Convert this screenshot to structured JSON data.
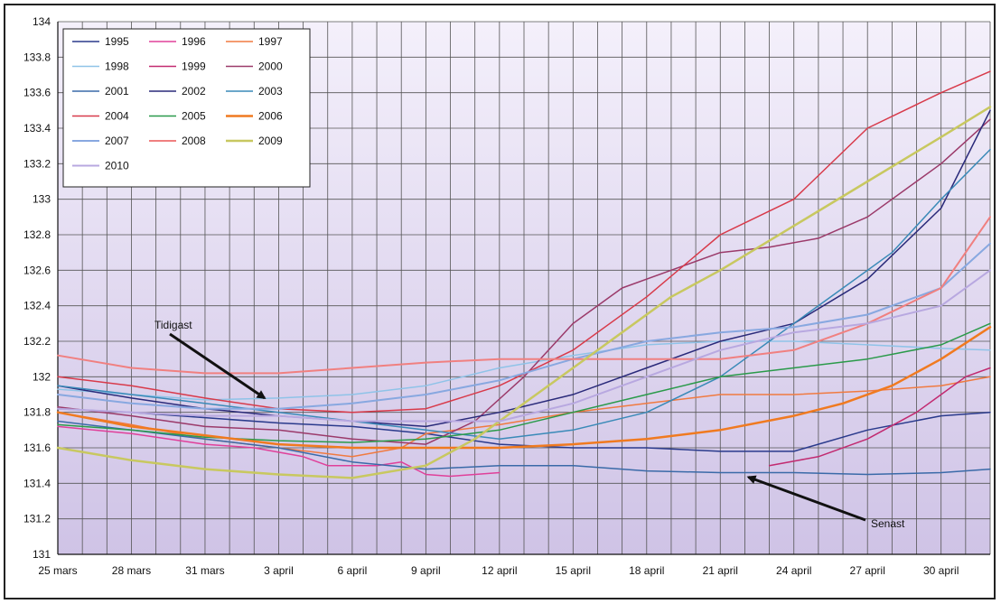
{
  "chart_data": {
    "type": "line",
    "title": "",
    "xlabel": "",
    "ylabel": "",
    "x_tick_labels": [
      "25 mars",
      "28 mars",
      "31 mars",
      "3 april",
      "6 april",
      "9 april",
      "12 april",
      "15 april",
      "18 april",
      "21 april",
      "24 april",
      "27 april",
      "30 april"
    ],
    "x_range": [
      0,
      38
    ],
    "ylim": [
      131,
      134
    ],
    "y_ticks": [
      131,
      131.2,
      131.4,
      131.6,
      131.8,
      132,
      132.2,
      132.4,
      132.6,
      132.8,
      133,
      133.2,
      133.4,
      133.6,
      133.8,
      134
    ],
    "y_tick_labels": [
      "131",
      "131.2",
      "131.4",
      "131.6",
      "131.8",
      "132",
      "132.2",
      "132.4",
      "132.6",
      "132.8",
      "133",
      "133.2",
      "133.4",
      "133.6",
      "133.8",
      "134"
    ],
    "grid": true,
    "legend_position": "top-left",
    "background_gradient": [
      "#f4f0fb",
      "#cfc3e6"
    ],
    "series": [
      {
        "name": "1995",
        "color": "#2a3a8c",
        "width": 1.5,
        "x": [
          0,
          3,
          6,
          9,
          12,
          15,
          18,
          21,
          24,
          27,
          30,
          33,
          36,
          38
        ],
        "values": [
          131.82,
          131.8,
          131.77,
          131.74,
          131.72,
          131.68,
          131.62,
          131.6,
          131.6,
          131.58,
          131.58,
          131.7,
          131.78,
          131.8
        ]
      },
      {
        "name": "1996",
        "color": "#e0409a",
        "width": 1.5,
        "x": [
          0,
          3,
          6,
          8,
          10,
          11,
          13,
          14,
          15,
          16,
          17,
          18
        ],
        "values": [
          131.72,
          131.68,
          131.62,
          131.6,
          131.55,
          131.5,
          131.5,
          131.52,
          131.45,
          131.44,
          131.45,
          131.46
        ]
      },
      {
        "name": "1997",
        "color": "#f07a40",
        "width": 1.5,
        "x": [
          0,
          3,
          6,
          9,
          12,
          14,
          15,
          18,
          21,
          24,
          27,
          30,
          33,
          36,
          38
        ],
        "values": [
          131.8,
          131.73,
          131.65,
          131.6,
          131.55,
          131.6,
          131.68,
          131.73,
          131.8,
          131.85,
          131.9,
          131.9,
          131.92,
          131.95,
          132.0
        ]
      },
      {
        "name": "1998",
        "color": "#8fc3e8",
        "width": 1.5,
        "x": [
          0,
          3,
          6,
          9,
          12,
          15,
          18,
          21,
          24,
          27,
          30,
          33,
          36,
          38
        ],
        "values": [
          131.93,
          131.9,
          131.87,
          131.88,
          131.9,
          131.95,
          132.05,
          132.12,
          132.18,
          132.2,
          132.2,
          132.18,
          132.16,
          132.15
        ]
      },
      {
        "name": "1999",
        "color": "#c22a70",
        "width": 1.5,
        "x": [
          29,
          31,
          33,
          35,
          36,
          37,
          38
        ],
        "values": [
          131.5,
          131.55,
          131.65,
          131.8,
          131.9,
          132.0,
          132.05
        ]
      },
      {
        "name": "2000",
        "color": "#9b3a6a",
        "width": 1.5,
        "x": [
          0,
          3,
          6,
          9,
          12,
          15,
          17,
          19,
          21,
          23,
          25,
          27,
          29,
          31,
          33,
          36,
          38
        ],
        "values": [
          131.83,
          131.78,
          131.72,
          131.7,
          131.65,
          131.62,
          131.75,
          132.0,
          132.3,
          132.5,
          132.6,
          132.7,
          132.73,
          132.78,
          132.9,
          133.2,
          133.45
        ]
      },
      {
        "name": "2001",
        "color": "#3a6aa8",
        "width": 1.5,
        "x": [
          0,
          3,
          6,
          9,
          12,
          15,
          18,
          21,
          24,
          27,
          30,
          33,
          36,
          38
        ],
        "values": [
          131.75,
          131.7,
          131.65,
          131.6,
          131.52,
          131.48,
          131.5,
          131.5,
          131.47,
          131.46,
          131.46,
          131.45,
          131.46,
          131.48
        ]
      },
      {
        "name": "2002",
        "color": "#2a2a7a",
        "width": 1.5,
        "x": [
          0,
          3,
          6,
          9,
          12,
          15,
          18,
          21,
          24,
          27,
          30,
          33,
          36,
          38
        ],
        "values": [
          131.95,
          131.88,
          131.82,
          131.78,
          131.75,
          131.72,
          131.8,
          131.9,
          132.05,
          132.2,
          132.3,
          132.55,
          132.95,
          133.5
        ]
      },
      {
        "name": "2003",
        "color": "#3a8ab8",
        "width": 1.5,
        "x": [
          0,
          3,
          6,
          9,
          12,
          15,
          18,
          21,
          24,
          27,
          30,
          32,
          34,
          36,
          38
        ],
        "values": [
          131.95,
          131.9,
          131.85,
          131.8,
          131.75,
          131.7,
          131.65,
          131.7,
          131.8,
          132.0,
          132.3,
          132.5,
          132.7,
          133.0,
          133.28
        ]
      },
      {
        "name": "2004",
        "color": "#d83a4a",
        "width": 1.5,
        "x": [
          0,
          3,
          6,
          9,
          12,
          15,
          18,
          21,
          24,
          27,
          30,
          33,
          36,
          38
        ],
        "values": [
          132.0,
          131.95,
          131.88,
          131.82,
          131.8,
          131.82,
          131.95,
          132.15,
          132.45,
          132.8,
          133.0,
          133.4,
          133.6,
          133.72
        ]
      },
      {
        "name": "2005",
        "color": "#2a9a4a",
        "width": 1.5,
        "x": [
          0,
          3,
          6,
          9,
          12,
          15,
          18,
          21,
          24,
          27,
          30,
          33,
          36,
          38
        ],
        "values": [
          131.73,
          131.7,
          131.66,
          131.64,
          131.63,
          131.65,
          131.7,
          131.8,
          131.9,
          132.0,
          132.05,
          132.1,
          132.18,
          132.3
        ]
      },
      {
        "name": "2006",
        "color": "#f07a20",
        "width": 2.5,
        "x": [
          0,
          3,
          6,
          9,
          12,
          15,
          18,
          21,
          24,
          27,
          30,
          32,
          34,
          36,
          38
        ],
        "values": [
          131.8,
          131.72,
          131.67,
          131.62,
          131.6,
          131.6,
          131.6,
          131.62,
          131.65,
          131.7,
          131.78,
          131.85,
          131.95,
          132.1,
          132.28
        ]
      },
      {
        "name": "2007",
        "color": "#88a8e0",
        "width": 2.0,
        "x": [
          0,
          3,
          6,
          9,
          12,
          15,
          18,
          21,
          24,
          27,
          30,
          33,
          36,
          38
        ],
        "values": [
          131.9,
          131.85,
          131.82,
          131.82,
          131.85,
          131.9,
          131.98,
          132.1,
          132.2,
          132.25,
          132.28,
          132.35,
          132.5,
          132.75
        ]
      },
      {
        "name": "2008",
        "color": "#f08080",
        "width": 2.0,
        "x": [
          0,
          3,
          6,
          9,
          12,
          15,
          18,
          21,
          24,
          27,
          30,
          33,
          36,
          38
        ],
        "values": [
          132.12,
          132.05,
          132.02,
          132.02,
          132.05,
          132.08,
          132.1,
          132.1,
          132.1,
          132.1,
          132.15,
          132.3,
          132.5,
          132.9
        ]
      },
      {
        "name": "2009",
        "color": "#c8c860",
        "width": 2.5,
        "x": [
          0,
          3,
          6,
          9,
          12,
          15,
          17,
          19,
          21,
          23,
          25,
          27,
          30,
          33,
          36,
          38
        ],
        "values": [
          131.6,
          131.53,
          131.48,
          131.45,
          131.43,
          131.5,
          131.65,
          131.85,
          132.05,
          132.25,
          132.45,
          132.6,
          132.85,
          133.1,
          133.35,
          133.52
        ]
      },
      {
        "name": "2010",
        "color": "#b8a8e0",
        "width": 2.0,
        "x": [
          0,
          3,
          6,
          9,
          12,
          15,
          18,
          21,
          24,
          27,
          30,
          33,
          36,
          38
        ],
        "values": [
          131.82,
          131.8,
          131.78,
          131.78,
          131.75,
          131.75,
          131.75,
          131.85,
          132.0,
          132.15,
          132.25,
          132.3,
          132.4,
          132.6
        ]
      }
    ],
    "annotations": [
      {
        "text": "Tidigast",
        "arrow_to": [
          8.5,
          131.85
        ]
      },
      {
        "text": "Senast",
        "arrow_to": [
          28,
          131.45
        ]
      }
    ]
  }
}
